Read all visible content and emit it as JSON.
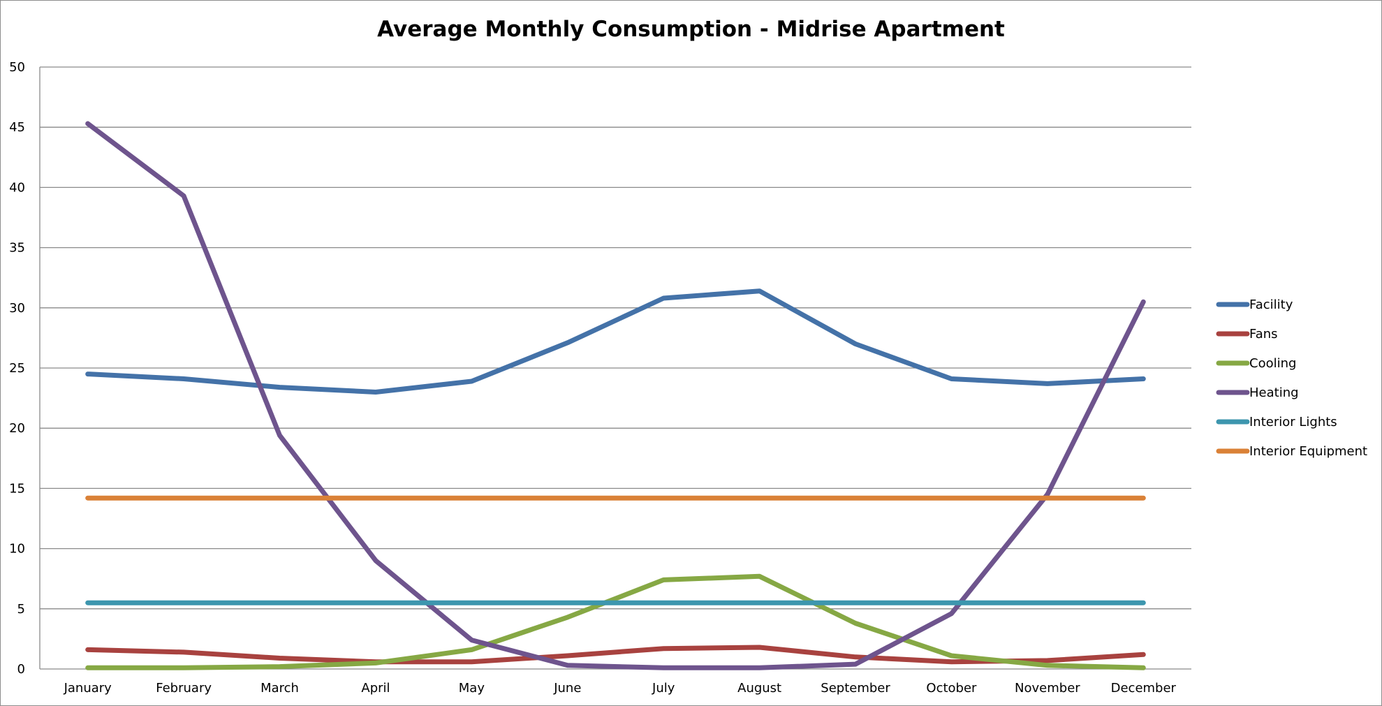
{
  "chart_data": {
    "type": "line",
    "title": "Average Monthly Consumption - Midrise Apartment",
    "xlabel": "",
    "ylabel": "",
    "ylim": [
      0,
      50
    ],
    "yticks": [
      "0",
      "5",
      "10",
      "15",
      "20",
      "25",
      "30",
      "35",
      "40",
      "45",
      "50"
    ],
    "grid": "horizontal",
    "legend": "right",
    "categories": [
      "January",
      "February",
      "March",
      "April",
      "May",
      "June",
      "July",
      "August",
      "September",
      "October",
      "November",
      "December"
    ],
    "series": [
      {
        "name": "Facility",
        "color": "#4472a8",
        "values": [
          24.5,
          24.1,
          23.4,
          23.0,
          23.9,
          27.1,
          30.8,
          31.4,
          27.0,
          24.1,
          23.7,
          24.1
        ]
      },
      {
        "name": "Fans",
        "color": "#a8423f",
        "values": [
          1.6,
          1.4,
          0.9,
          0.6,
          0.6,
          1.1,
          1.7,
          1.8,
          1.0,
          0.6,
          0.7,
          1.2
        ]
      },
      {
        "name": "Cooling",
        "color": "#86a844",
        "values": [
          0.1,
          0.1,
          0.2,
          0.5,
          1.6,
          4.3,
          7.4,
          7.7,
          3.8,
          1.1,
          0.3,
          0.1
        ]
      },
      {
        "name": "Heating",
        "color": "#6e548d",
        "values": [
          45.3,
          39.3,
          19.4,
          9.0,
          2.4,
          0.3,
          0.1,
          0.1,
          0.4,
          4.6,
          14.5,
          30.5
        ]
      },
      {
        "name": "Interior Lights",
        "color": "#3d96ae",
        "values": [
          5.5,
          5.5,
          5.5,
          5.5,
          5.5,
          5.5,
          5.5,
          5.5,
          5.5,
          5.5,
          5.5,
          5.5
        ]
      },
      {
        "name": "Interior Equipment",
        "color": "#da8137",
        "values": [
          14.2,
          14.2,
          14.2,
          14.2,
          14.2,
          14.2,
          14.2,
          14.2,
          14.2,
          14.2,
          14.2,
          14.2
        ]
      }
    ]
  }
}
